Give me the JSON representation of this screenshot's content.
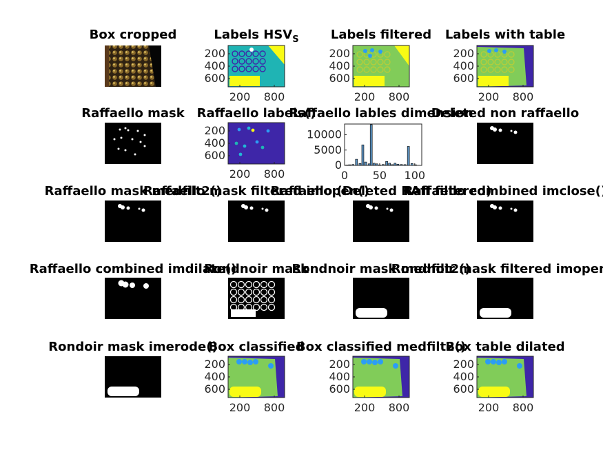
{
  "figure": {
    "background": "#ffffff",
    "colors": {
      "dark_blue": "#3e26a8",
      "teal": "#1fb4b4",
      "cyan": "#21b8d6",
      "light_blue": "#2c9df4",
      "green": "#81cc59",
      "green_yellow": "#b7cd3a",
      "yellow": "#f9fb14",
      "white": "#ffffff",
      "black": "#000000",
      "bar_fill": "#5a8fbd",
      "bar_edge": "#000000"
    }
  },
  "panels": [
    {
      "title": "Box cropped",
      "kind": "photo"
    },
    {
      "title": "Labels HSV",
      "title_sub": "S",
      "kind": "labels_hsv",
      "yticks": [
        "200",
        "400",
        "600"
      ],
      "xticks": [
        "200",
        "800"
      ]
    },
    {
      "title": "Labels filtered",
      "kind": "labels_filtered",
      "yticks": [
        "200",
        "400",
        "600"
      ],
      "xticks": [
        "200",
        "800"
      ]
    },
    {
      "title": "Labels with table",
      "kind": "labels_table",
      "yticks": [
        "200",
        "400",
        "600"
      ],
      "xticks": [
        "200",
        "800"
      ]
    },
    {
      "title": "Raffaello mask",
      "kind": "mask_sparse"
    },
    {
      "title": "Raffaello labels()",
      "kind": "raffaello_labels",
      "yticks": [
        "200",
        "400",
        "600"
      ],
      "xticks": [
        "200",
        "800"
      ]
    },
    {
      "title": "Raffaello lables dimension",
      "kind": "histogram",
      "yticks": [
        "0",
        "5000",
        "10000"
      ],
      "xticks": [
        "0",
        "50",
        "100"
      ]
    },
    {
      "title": "Deleted non raffaello",
      "kind": "mask_few"
    },
    {
      "title": "Raffaello mask medfilt2()",
      "kind": "mask_few"
    },
    {
      "title": "Raffaello mask filtered imopen()",
      "kind": "mask_few"
    },
    {
      "title": "Raffaello (Deleted RAff filtered)",
      "kind": "mask_few"
    },
    {
      "title": "Raffaello combined imclose()",
      "kind": "mask_few"
    },
    {
      "title": "Raffaello combined imdilate()",
      "kind": "mask_dilated"
    },
    {
      "title": "Rondnoir mask",
      "kind": "mask_rondnoir"
    },
    {
      "title": "Rondnoir mask medfilt2()",
      "kind": "mask_blob"
    },
    {
      "title": "Rondnoir mask filtered imopen()",
      "kind": "mask_blob"
    },
    {
      "title": "Rondoir mask imerode()",
      "kind": "mask_blob"
    },
    {
      "title": "Box classified",
      "kind": "classified",
      "yticks": [
        "200",
        "400",
        "600"
      ],
      "xticks": [
        "200",
        "800"
      ]
    },
    {
      "title": "Box classified medfilt2()",
      "kind": "classified",
      "yticks": [
        "200",
        "400",
        "600"
      ],
      "xticks": [
        "200",
        "800"
      ]
    },
    {
      "title": "Box table dilated",
      "kind": "classified",
      "yticks": [
        "200",
        "400",
        "600"
      ],
      "xticks": [
        "200",
        "800"
      ]
    }
  ],
  "chart_data": {
    "type": "bar",
    "title": "Raffaello lables dimension",
    "xlim": [
      0,
      110
    ],
    "ylim": [
      0,
      13500
    ],
    "x": [
      3,
      7,
      12,
      17,
      22,
      26,
      30,
      35,
      38,
      42,
      46,
      50,
      55,
      60,
      64,
      68,
      72,
      76,
      81,
      86,
      91,
      96,
      101
    ],
    "values": [
      120,
      200,
      300,
      2000,
      600,
      6700,
      1100,
      500,
      13300,
      700,
      500,
      150,
      300,
      1300,
      700,
      250,
      700,
      400,
      300,
      250,
      6200,
      600,
      200
    ]
  }
}
